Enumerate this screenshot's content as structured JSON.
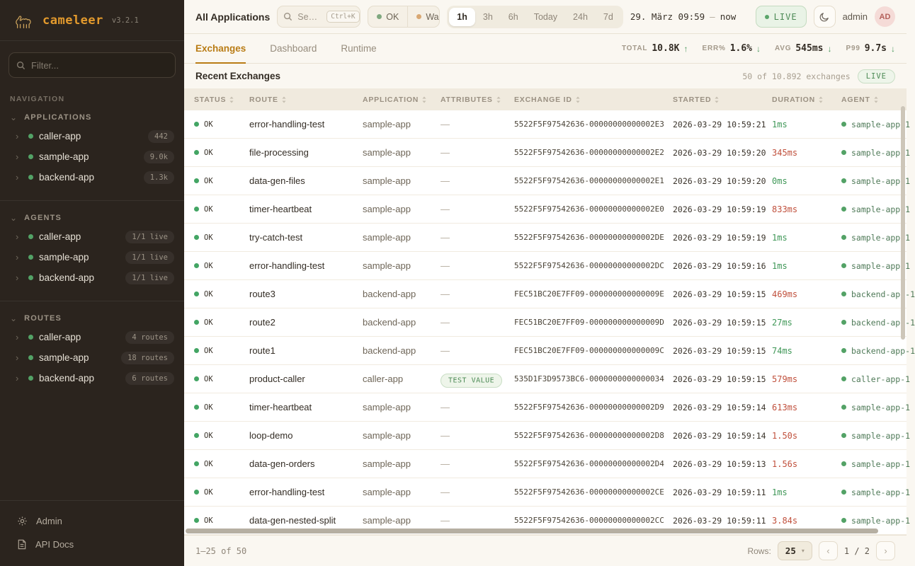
{
  "brand": {
    "name": "cameleer",
    "version": "v3.2.1",
    "accent": "#e39a2d"
  },
  "sidebar": {
    "filter_placeholder": "Filter...",
    "nav_label": "NAVIGATION",
    "sections": [
      {
        "title": "APPLICATIONS",
        "items": [
          {
            "label": "caller-app",
            "badge": "442"
          },
          {
            "label": "sample-app",
            "badge": "9.0k"
          },
          {
            "label": "backend-app",
            "badge": "1.3k"
          }
        ]
      },
      {
        "title": "AGENTS",
        "items": [
          {
            "label": "caller-app",
            "badge": "1/1 live"
          },
          {
            "label": "sample-app",
            "badge": "1/1 live"
          },
          {
            "label": "backend-app",
            "badge": "1/1 live"
          }
        ]
      },
      {
        "title": "ROUTES",
        "items": [
          {
            "label": "caller-app",
            "badge": "4 routes"
          },
          {
            "label": "sample-app",
            "badge": "18 routes"
          },
          {
            "label": "backend-app",
            "badge": "6 routes"
          }
        ]
      }
    ],
    "footer": {
      "admin": "Admin",
      "api_docs": "API Docs"
    }
  },
  "topbar": {
    "scope": "All Applications",
    "search": {
      "placeholder": "Se…",
      "shortcut": "Ctrl+K"
    },
    "status_filters": [
      {
        "label": "OK",
        "dot_color": "#7fa87f"
      },
      {
        "label": "Wa",
        "dot_color": "#d9a873"
      }
    ],
    "time_ranges": [
      "1h",
      "3h",
      "6h",
      "Today",
      "24h",
      "7d"
    ],
    "active_range": "1h",
    "date_from": "29. März 09:59",
    "date_sep": "—",
    "date_to": "now",
    "live_label": "LIVE",
    "user": {
      "name": "admin",
      "initials": "AD"
    }
  },
  "tabs": {
    "active": "Exchanges",
    "items": [
      "Exchanges",
      "Dashboard",
      "Runtime"
    ]
  },
  "stats": [
    {
      "label": "TOTAL",
      "value": "10.8K",
      "arrow": "↑"
    },
    {
      "label": "ERR%",
      "value": "1.6%",
      "arrow": "↓"
    },
    {
      "label": "AVG",
      "value": "545ms",
      "arrow": "↓"
    },
    {
      "label": "P99",
      "value": "9.7s",
      "arrow": "↓"
    }
  ],
  "table": {
    "title": "Recent Exchanges",
    "summary": "50 of 10.892 exchanges",
    "live_badge": "LIVE",
    "columns": [
      "STATUS",
      "ROUTE",
      "APPLICATION",
      "ATTRIBUTES",
      "EXCHANGE ID",
      "STARTED",
      "DURATION",
      "AGENT"
    ],
    "status_ok_color": "#43a564",
    "rows": [
      {
        "status": "OK",
        "route": "error-handling-test",
        "application": "sample-app",
        "attributes": "—",
        "attribute_badge": null,
        "exchange_id": "5522F5F97542636-00000000000002E3",
        "started": "2026-03-29 10:59:21",
        "duration": "1ms",
        "duration_color": "green",
        "agent": "sample-app-1"
      },
      {
        "status": "OK",
        "route": "file-processing",
        "application": "sample-app",
        "attributes": "—",
        "attribute_badge": null,
        "exchange_id": "5522F5F97542636-00000000000002E2",
        "started": "2026-03-29 10:59:20",
        "duration": "345ms",
        "duration_color": "red",
        "agent": "sample-app-1"
      },
      {
        "status": "OK",
        "route": "data-gen-files",
        "application": "sample-app",
        "attributes": "—",
        "attribute_badge": null,
        "exchange_id": "5522F5F97542636-00000000000002E1",
        "started": "2026-03-29 10:59:20",
        "duration": "0ms",
        "duration_color": "green",
        "agent": "sample-app-1"
      },
      {
        "status": "OK",
        "route": "timer-heartbeat",
        "application": "sample-app",
        "attributes": "—",
        "attribute_badge": null,
        "exchange_id": "5522F5F97542636-00000000000002E0",
        "started": "2026-03-29 10:59:19",
        "duration": "833ms",
        "duration_color": "red",
        "agent": "sample-app-1"
      },
      {
        "status": "OK",
        "route": "try-catch-test",
        "application": "sample-app",
        "attributes": "—",
        "attribute_badge": null,
        "exchange_id": "5522F5F97542636-00000000000002DE",
        "started": "2026-03-29 10:59:19",
        "duration": "1ms",
        "duration_color": "green",
        "agent": "sample-app-1"
      },
      {
        "status": "OK",
        "route": "error-handling-test",
        "application": "sample-app",
        "attributes": "—",
        "attribute_badge": null,
        "exchange_id": "5522F5F97542636-00000000000002DC",
        "started": "2026-03-29 10:59:16",
        "duration": "1ms",
        "duration_color": "green",
        "agent": "sample-app-1"
      },
      {
        "status": "OK",
        "route": "route3",
        "application": "backend-app",
        "attributes": "—",
        "attribute_badge": null,
        "exchange_id": "FEC51BC20E7FF09-000000000000009E",
        "started": "2026-03-29 10:59:15",
        "duration": "469ms",
        "duration_color": "red",
        "agent": "backend-app-1"
      },
      {
        "status": "OK",
        "route": "route2",
        "application": "backend-app",
        "attributes": "—",
        "attribute_badge": null,
        "exchange_id": "FEC51BC20E7FF09-000000000000009D",
        "started": "2026-03-29 10:59:15",
        "duration": "27ms",
        "duration_color": "green",
        "agent": "backend-app-1"
      },
      {
        "status": "OK",
        "route": "route1",
        "application": "backend-app",
        "attributes": "—",
        "attribute_badge": null,
        "exchange_id": "FEC51BC20E7FF09-000000000000009C",
        "started": "2026-03-29 10:59:15",
        "duration": "74ms",
        "duration_color": "green",
        "agent": "backend-app-1"
      },
      {
        "status": "OK",
        "route": "product-caller",
        "application": "caller-app",
        "attributes": "",
        "attribute_badge": "TEST VALUE",
        "exchange_id": "535D1F3D9573BC6-0000000000000034",
        "started": "2026-03-29 10:59:15",
        "duration": "579ms",
        "duration_color": "red",
        "agent": "caller-app-1"
      },
      {
        "status": "OK",
        "route": "timer-heartbeat",
        "application": "sample-app",
        "attributes": "—",
        "attribute_badge": null,
        "exchange_id": "5522F5F97542636-00000000000002D9",
        "started": "2026-03-29 10:59:14",
        "duration": "613ms",
        "duration_color": "red",
        "agent": "sample-app-1"
      },
      {
        "status": "OK",
        "route": "loop-demo",
        "application": "sample-app",
        "attributes": "—",
        "attribute_badge": null,
        "exchange_id": "5522F5F97542636-00000000000002D8",
        "started": "2026-03-29 10:59:14",
        "duration": "1.50s",
        "duration_color": "red",
        "agent": "sample-app-1"
      },
      {
        "status": "OK",
        "route": "data-gen-orders",
        "application": "sample-app",
        "attributes": "—",
        "attribute_badge": null,
        "exchange_id": "5522F5F97542636-00000000000002D4",
        "started": "2026-03-29 10:59:13",
        "duration": "1.56s",
        "duration_color": "red",
        "agent": "sample-app-1"
      },
      {
        "status": "OK",
        "route": "error-handling-test",
        "application": "sample-app",
        "attributes": "—",
        "attribute_badge": null,
        "exchange_id": "5522F5F97542636-00000000000002CE",
        "started": "2026-03-29 10:59:11",
        "duration": "1ms",
        "duration_color": "green",
        "agent": "sample-app-1"
      },
      {
        "status": "OK",
        "route": "data-gen-nested-split",
        "application": "sample-app",
        "attributes": "—",
        "attribute_badge": null,
        "exchange_id": "5522F5F97542636-00000000000002CC",
        "started": "2026-03-29 10:59:11",
        "duration": "3.84s",
        "duration_color": "red",
        "agent": "sample-app-1"
      }
    ]
  },
  "pagination": {
    "range": "1–25 of 50",
    "rows_label": "Rows:",
    "rows_value": "25",
    "prev": "‹",
    "page": "1 / 2",
    "next": "›"
  }
}
